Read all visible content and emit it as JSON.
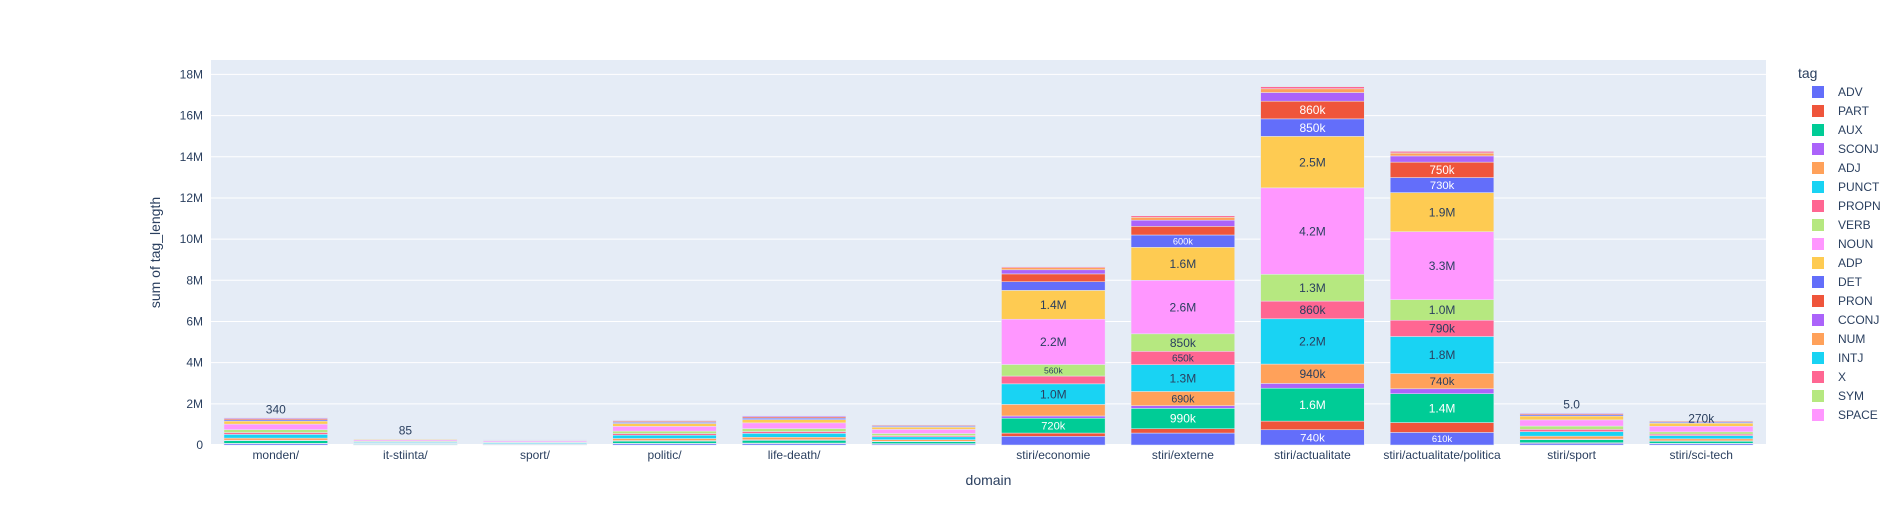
{
  "chart_data": {
    "type": "bar",
    "barmode": "stack",
    "xlabel": "domain",
    "ylabel": "sum of tag_length",
    "ylim": [
      0,
      18700000
    ],
    "yticks": [
      0,
      2000000,
      4000000,
      6000000,
      8000000,
      10000000,
      12000000,
      14000000,
      16000000,
      18000000
    ],
    "ytick_labels": [
      "0",
      "2M",
      "4M",
      "6M",
      "8M",
      "10M",
      "12M",
      "14M",
      "16M",
      "18M"
    ],
    "grid": true,
    "legend_title": "tag",
    "legend_position": "right",
    "categories": [
      "monden/",
      "it-stiinta/",
      "sport/",
      "politic/",
      "life-death/",
      "",
      "stiri/economie",
      "stiri/externe",
      "stiri/actualitate",
      "stiri/actualitate/politica",
      "stiri/sport",
      "stiri/sci-tech"
    ],
    "series": [
      {
        "name": "ADV",
        "color": "#636efa",
        "values": [
          60000,
          15000,
          12000,
          60000,
          70000,
          50000,
          420000,
          580000,
          740000,
          610000,
          80000,
          60000
        ],
        "labels": [
          "",
          "",
          "",
          "",
          "",
          "",
          "",
          "",
          "740k",
          "610k",
          "",
          ""
        ]
      },
      {
        "name": "PART",
        "color": "#EF553B",
        "values": [
          20000,
          5000,
          4000,
          20000,
          25000,
          18000,
          160000,
          210000,
          420000,
          480000,
          30000,
          20000
        ],
        "labels": [
          "",
          "",
          "",
          "",
          "",
          "",
          "",
          "",
          "",
          "",
          "",
          ""
        ]
      },
      {
        "name": "AUX",
        "color": "#00cc96",
        "values": [
          130000,
          30000,
          25000,
          110000,
          130000,
          90000,
          720000,
          990000,
          1600000,
          1400000,
          150000,
          100000
        ],
        "labels": [
          "",
          "",
          "",
          "",
          "",
          "",
          "720k",
          "990k",
          "1.6M",
          "1.4M",
          "",
          ""
        ]
      },
      {
        "name": "SCONJ",
        "color": "#ab63fa",
        "values": [
          25000,
          6000,
          5000,
          25000,
          30000,
          20000,
          110000,
          130000,
          230000,
          240000,
          30000,
          20000
        ],
        "labels": [
          "",
          "",
          "",
          "",
          "",
          "",
          "",
          "",
          "",
          "",
          "",
          ""
        ]
      },
      {
        "name": "ADJ",
        "color": "#FFA15A",
        "values": [
          100000,
          25000,
          20000,
          100000,
          120000,
          80000,
          560000,
          690000,
          940000,
          740000,
          140000,
          100000
        ],
        "labels": [
          "",
          "",
          "",
          "",
          "",
          "",
          "",
          "690k",
          "940k",
          "740k",
          "",
          ""
        ]
      },
      {
        "name": "PUNCT",
        "color": "#19d3f3",
        "values": [
          180000,
          45000,
          40000,
          160000,
          190000,
          140000,
          1000000,
          1300000,
          2200000,
          1800000,
          220000,
          160000
        ],
        "labels": [
          "",
          "",
          "",
          "",
          "",
          "",
          "1.0M",
          "1.3M",
          "2.2M",
          "1.8M",
          "",
          ""
        ]
      },
      {
        "name": "PROPN",
        "color": "#FF6692",
        "values": [
          90000,
          20000,
          18000,
          80000,
          90000,
          60000,
          380000,
          650000,
          860000,
          790000,
          110000,
          70000
        ],
        "labels": [
          "",
          "",
          "",
          "",
          "",
          "",
          "",
          "650k",
          "860k",
          "790k",
          "",
          ""
        ]
      },
      {
        "name": "VERB",
        "color": "#B6E880",
        "values": [
          140000,
          35000,
          30000,
          120000,
          140000,
          100000,
          560000,
          850000,
          1300000,
          1000000,
          160000,
          110000
        ],
        "labels": [
          "",
          "",
          "",
          "",
          "",
          "",
          "560k",
          "850k",
          "1.3M",
          "1.0M",
          "",
          ""
        ]
      },
      {
        "name": "NOUN",
        "color": "#FF97FF",
        "values": [
          270000,
          60000,
          55000,
          230000,
          280000,
          200000,
          2200000,
          2600000,
          4200000,
          3300000,
          300000,
          270000
        ],
        "labels": [
          "",
          "",
          "",
          "",
          "",
          "",
          "2.2M",
          "2.6M",
          "4.2M",
          "3.3M",
          "",
          "270k"
        ]
      },
      {
        "name": "ADP",
        "color": "#FECB52",
        "values": [
          150000,
          35000,
          30000,
          140000,
          160000,
          110000,
          1400000,
          1600000,
          2500000,
          1900000,
          190000,
          150000
        ],
        "labels": [
          "",
          "",
          "",
          "",
          "",
          "",
          "1.4M",
          "1.6M",
          "2.5M",
          "1.9M",
          "",
          ""
        ]
      },
      {
        "name": "DET",
        "color": "#636efa",
        "values": [
          60000,
          15000,
          12000,
          55000,
          65000,
          45000,
          420000,
          600000,
          850000,
          730000,
          60000,
          50000
        ],
        "labels": [
          "",
          "",
          "",
          "",
          "",
          "",
          "",
          "600k",
          "850k",
          "730k",
          "",
          ""
        ]
      },
      {
        "name": "PRON",
        "color": "#EF553B",
        "values": [
          60000,
          14000,
          12000,
          50000,
          60000,
          40000,
          380000,
          420000,
          860000,
          750000,
          50000,
          40000
        ],
        "labels": [
          "",
          "",
          "",
          "",
          "",
          "",
          "",
          "",
          "860k",
          "750k",
          "",
          ""
        ]
      },
      {
        "name": "CCONJ",
        "color": "#ab63fa",
        "values": [
          45000,
          12000,
          10000,
          40000,
          50000,
          30000,
          200000,
          300000,
          420000,
          300000,
          40000,
          30000
        ],
        "labels": [
          "",
          "",
          "",
          "",
          "",
          "",
          "",
          "",
          "",
          "",
          "",
          ""
        ]
      },
      {
        "name": "NUM",
        "color": "#FFA15A",
        "values": [
          15000,
          5000,
          4000,
          15000,
          18000,
          12000,
          100000,
          140000,
          180000,
          140000,
          25000,
          15000
        ],
        "labels": [
          "",
          "",
          "",
          "",
          "",
          "",
          "",
          "",
          "",
          "",
          "",
          ""
        ]
      },
      {
        "name": "INTJ",
        "color": "#19d3f3",
        "values": [
          340,
          85,
          60,
          200,
          250,
          150,
          3000,
          4000,
          6000,
          5000,
          5,
          200
        ],
        "labels": [
          "340",
          "85",
          "",
          "",
          "",
          "",
          "",
          "",
          "",
          "",
          "5.0",
          ""
        ]
      },
      {
        "name": "X",
        "color": "#FF6692",
        "values": [
          8000,
          2000,
          1500,
          7000,
          9000,
          5000,
          50000,
          70000,
          100000,
          80000,
          10000,
          8000
        ],
        "labels": [
          "",
          "",
          "",
          "",
          "",
          "",
          "",
          "",
          "",
          "",
          "",
          ""
        ]
      },
      {
        "name": "SYM",
        "color": "#B6E880",
        "values": [
          3000,
          800,
          600,
          3000,
          3500,
          2000,
          15000,
          20000,
          30000,
          25000,
          4000,
          3000
        ],
        "labels": [
          "",
          "",
          "",
          "",
          "",
          "",
          "",
          "",
          "",
          "",
          "",
          ""
        ]
      },
      {
        "name": "SPACE",
        "color": "#FF97FF",
        "values": [
          500,
          100,
          80,
          400,
          500,
          300,
          2000,
          3000,
          4000,
          3000,
          600,
          400
        ],
        "labels": [
          "",
          "",
          "",
          "",
          "",
          "",
          "",
          "",
          "",
          "",
          "",
          ""
        ]
      }
    ]
  }
}
